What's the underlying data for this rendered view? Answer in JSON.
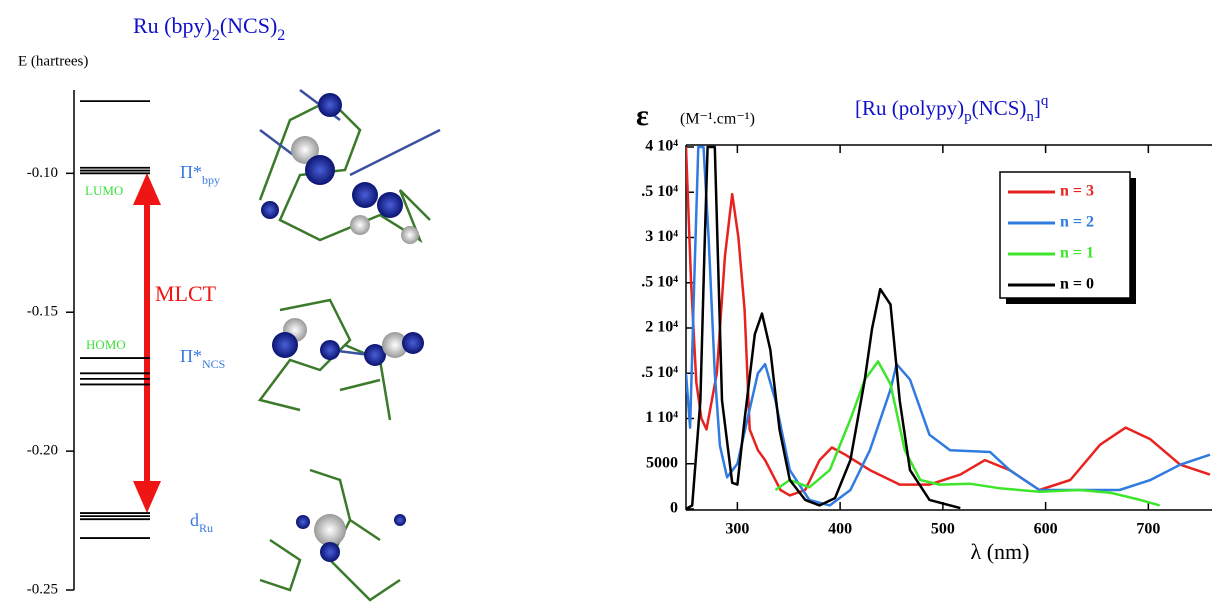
{
  "chart_data": [
    {
      "type": "levels",
      "title": [
        "Ru (bpy)",
        "2",
        "(NCS)",
        "2"
      ],
      "y_label": "E (hartrees)",
      "values": [
        -0.074,
        -0.098,
        -0.099,
        -0.1,
        -0.1665,
        -0.172,
        -0.174,
        -0.176,
        -0.2223,
        -0.2234,
        -0.2245,
        -0.2313
      ],
      "color": "#000000",
      "ylim": [
        -0.25,
        -0.07
      ],
      "yticks": [
        {
          "value": -0.1,
          "label": "-0.10"
        },
        -0.15,
        {
          "value": -0.2,
          "label": "-0.20"
        },
        -0.25
      ],
      "annotations": {
        "lumo": "LUMO",
        "homo": "HOMO",
        "mlct": "MLCT",
        "pi_bpy": [
          "Π*",
          "bpy"
        ],
        "pi_ncs": [
          "Π*",
          "NCS"
        ],
        "d_ru": [
          "d",
          "Ru"
        ]
      }
    },
    {
      "type": "line",
      "title": [
        "[Ru (polypy)",
        "p",
        "(NCS)",
        "n",
        "]",
        "q"
      ],
      "y_label": "ε",
      "y_unit": "(M⁻¹.cm⁻¹)",
      "x_label": "λ (nm)",
      "xlim": [
        250,
        760
      ],
      "ylim": [
        0,
        40000
      ],
      "xticks": [
        300,
        400,
        500,
        600,
        700
      ],
      "yticks": [
        0,
        5000,
        {
          "value": 10000,
          "label": "1 10⁴"
        },
        {
          "value": 15000,
          "label": ".5 10⁴"
        },
        {
          "value": 20000,
          "label": "2 10⁴"
        },
        {
          "value": 25000,
          "label": ".5 10⁴"
        },
        {
          "value": 30000,
          "label": "3 10⁴"
        },
        {
          "value": 35000,
          "label": ".5 10⁴"
        },
        {
          "value": 40000,
          "label": "4 10⁴"
        }
      ],
      "grid": false,
      "legend": "upper right",
      "series": [
        {
          "name": "n = 3",
          "color": "#e8231f",
          "x": [
            250,
            255,
            260,
            265,
            270,
            280,
            288,
            295,
            301,
            307,
            312,
            320,
            327,
            342,
            351,
            366,
            380,
            392,
            405,
            429,
            458,
            487,
            517,
            541,
            565,
            594,
            624,
            653,
            678,
            702,
            731,
            760
          ],
          "values": [
            40000,
            25000,
            14000,
            10000,
            8800,
            15000,
            28000,
            34800,
            30000,
            22000,
            8800,
            6500,
            5400,
            2100,
            1500,
            2100,
            5400,
            6800,
            6000,
            4300,
            2700,
            2700,
            3800,
            5400,
            4300,
            2100,
            3200,
            7100,
            9000,
            7700,
            4900,
            3800
          ]
        },
        {
          "name": "n = 2",
          "color": "#2f7be0",
          "x": [
            250,
            254,
            258,
            262,
            267,
            272,
            278,
            283,
            290,
            300,
            310,
            320,
            327,
            337,
            351,
            370,
            390,
            410,
            429,
            449,
            455,
            468,
            487,
            507,
            546,
            565,
            594,
            633,
            672,
            702,
            731,
            760
          ],
          "values": [
            15000,
            9000,
            25000,
            40000,
            40000,
            30000,
            15000,
            7000,
            3500,
            5000,
            10000,
            15000,
            16000,
            12000,
            4300,
            1000,
            400,
            2100,
            6500,
            13200,
            16000,
            14300,
            8200,
            6500,
            6300,
            4300,
            2100,
            2100,
            2100,
            3200,
            4900,
            6000
          ]
        },
        {
          "name": "n = 1",
          "color": "#3de62a",
          "x": [
            337,
            351,
            370,
            390,
            410,
            424,
            437,
            449,
            463,
            478,
            497,
            526,
            555,
            594,
            633,
            663,
            692,
            711
          ],
          "values": [
            2100,
            3200,
            2400,
            4300,
            9900,
            14300,
            16300,
            13800,
            6500,
            3200,
            2700,
            2800,
            2300,
            1900,
            2100,
            1800,
            1000,
            400
          ]
        },
        {
          "name": "n = 0",
          "color": "#000000",
          "x": [
            250,
            256,
            264,
            268,
            271,
            278,
            285,
            295,
            300,
            307,
            317,
            324,
            332,
            341,
            351,
            366,
            380,
            395,
            410,
            424,
            431,
            439,
            449,
            458,
            468,
            487,
            517
          ],
          "values": [
            0,
            400,
            12000,
            28700,
            40000,
            40000,
            12000,
            2900,
            2700,
            9900,
            19300,
            21600,
            17600,
            8800,
            3200,
            1000,
            400,
            1200,
            5400,
            14300,
            19900,
            24300,
            22600,
            12000,
            4300,
            1000,
            100
          ]
        }
      ]
    }
  ]
}
